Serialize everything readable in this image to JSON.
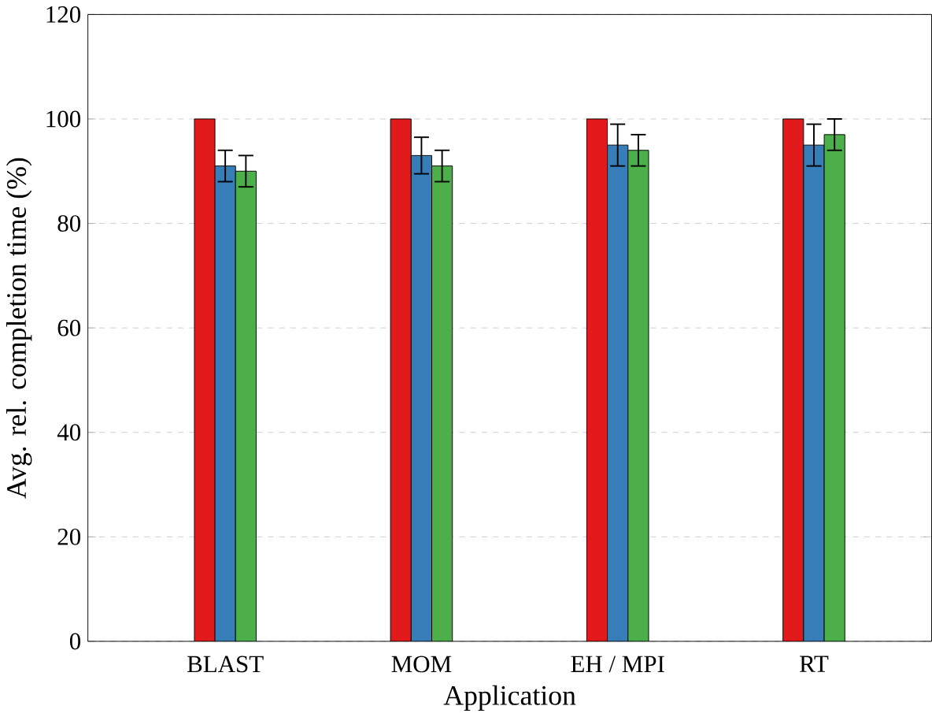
{
  "chart_data": {
    "type": "bar",
    "xlabel": "Application",
    "ylabel": "Avg. rel. completion time (%)",
    "categories": [
      "BLAST",
      "MOM",
      "EH / MPI",
      "RT"
    ],
    "series": [
      {
        "color": "#e31a1c",
        "values": [
          100,
          100,
          100,
          100
        ]
      },
      {
        "color": "#377eb8",
        "values": [
          91,
          93,
          95,
          95
        ],
        "errors": [
          3,
          3.5,
          4,
          4
        ]
      },
      {
        "color": "#4daf4a",
        "values": [
          90,
          91,
          94,
          97
        ],
        "errors": [
          3,
          3,
          3,
          3
        ]
      }
    ],
    "ylim": [
      0,
      120
    ],
    "yticks": [
      0,
      20,
      40,
      60,
      80,
      100,
      120
    ],
    "grid": "y"
  }
}
